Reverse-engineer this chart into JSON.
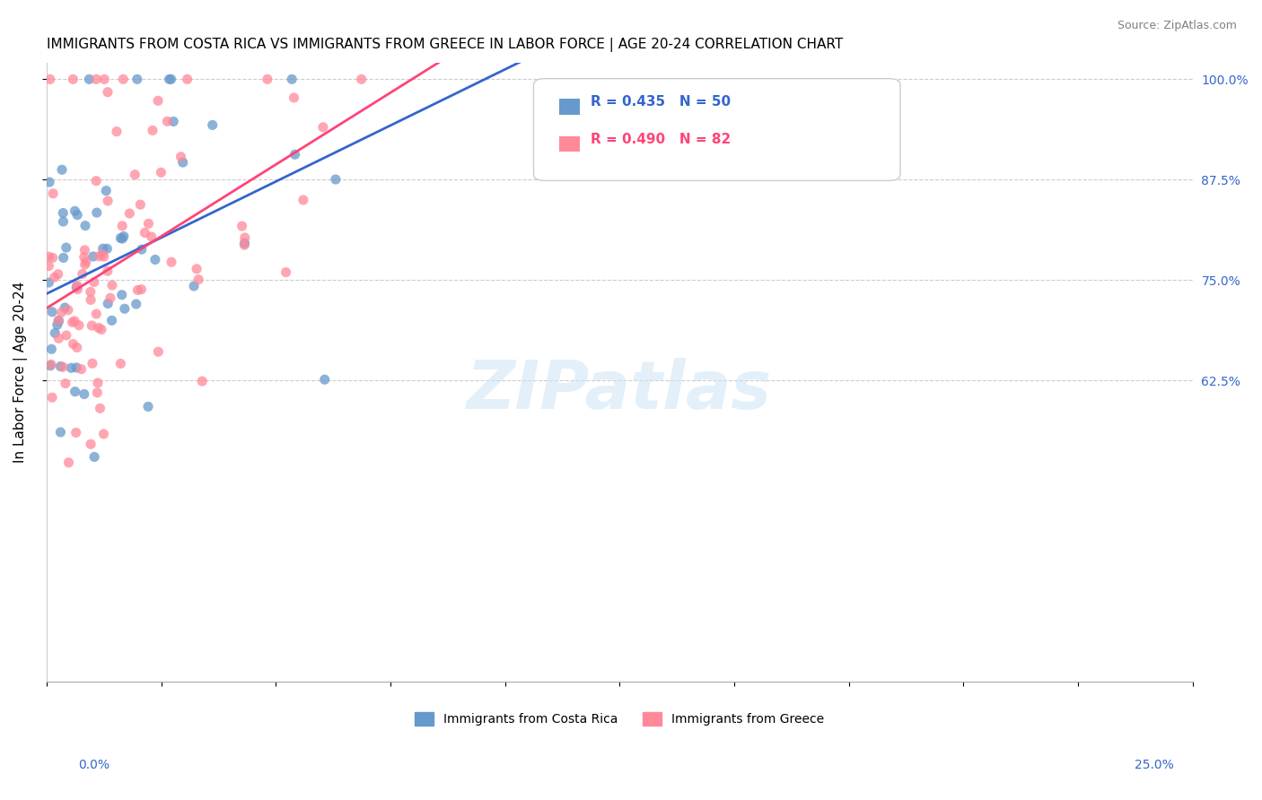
{
  "title": "IMMIGRANTS FROM COSTA RICA VS IMMIGRANTS FROM GREECE IN LABOR FORCE | AGE 20-24 CORRELATION CHART",
  "source": "Source: ZipAtlas.com",
  "ylabel": "In Labor Force | Age 20-24",
  "ylabel_ticks": [
    1.0,
    0.875,
    0.75,
    0.625
  ],
  "xmin": 0.0,
  "xmax": 0.25,
  "ymin": 0.25,
  "ymax": 1.02,
  "costa_rica_color": "#6699CC",
  "greece_color": "#FF8899",
  "costa_rica_line_color": "#3366CC",
  "greece_line_color": "#FF4477",
  "costa_rica_R": 0.435,
  "costa_rica_N": 50,
  "greece_R": 0.49,
  "greece_N": 82,
  "legend_label_cr": "Immigrants from Costa Rica",
  "legend_label_gr": "Immigrants from Greece",
  "watermark": "ZIPatlas",
  "title_fontsize": 11,
  "source_fontsize": 9,
  "axis_label_fontsize": 11,
  "tick_label_fontsize": 10,
  "legend_fontsize": 10
}
